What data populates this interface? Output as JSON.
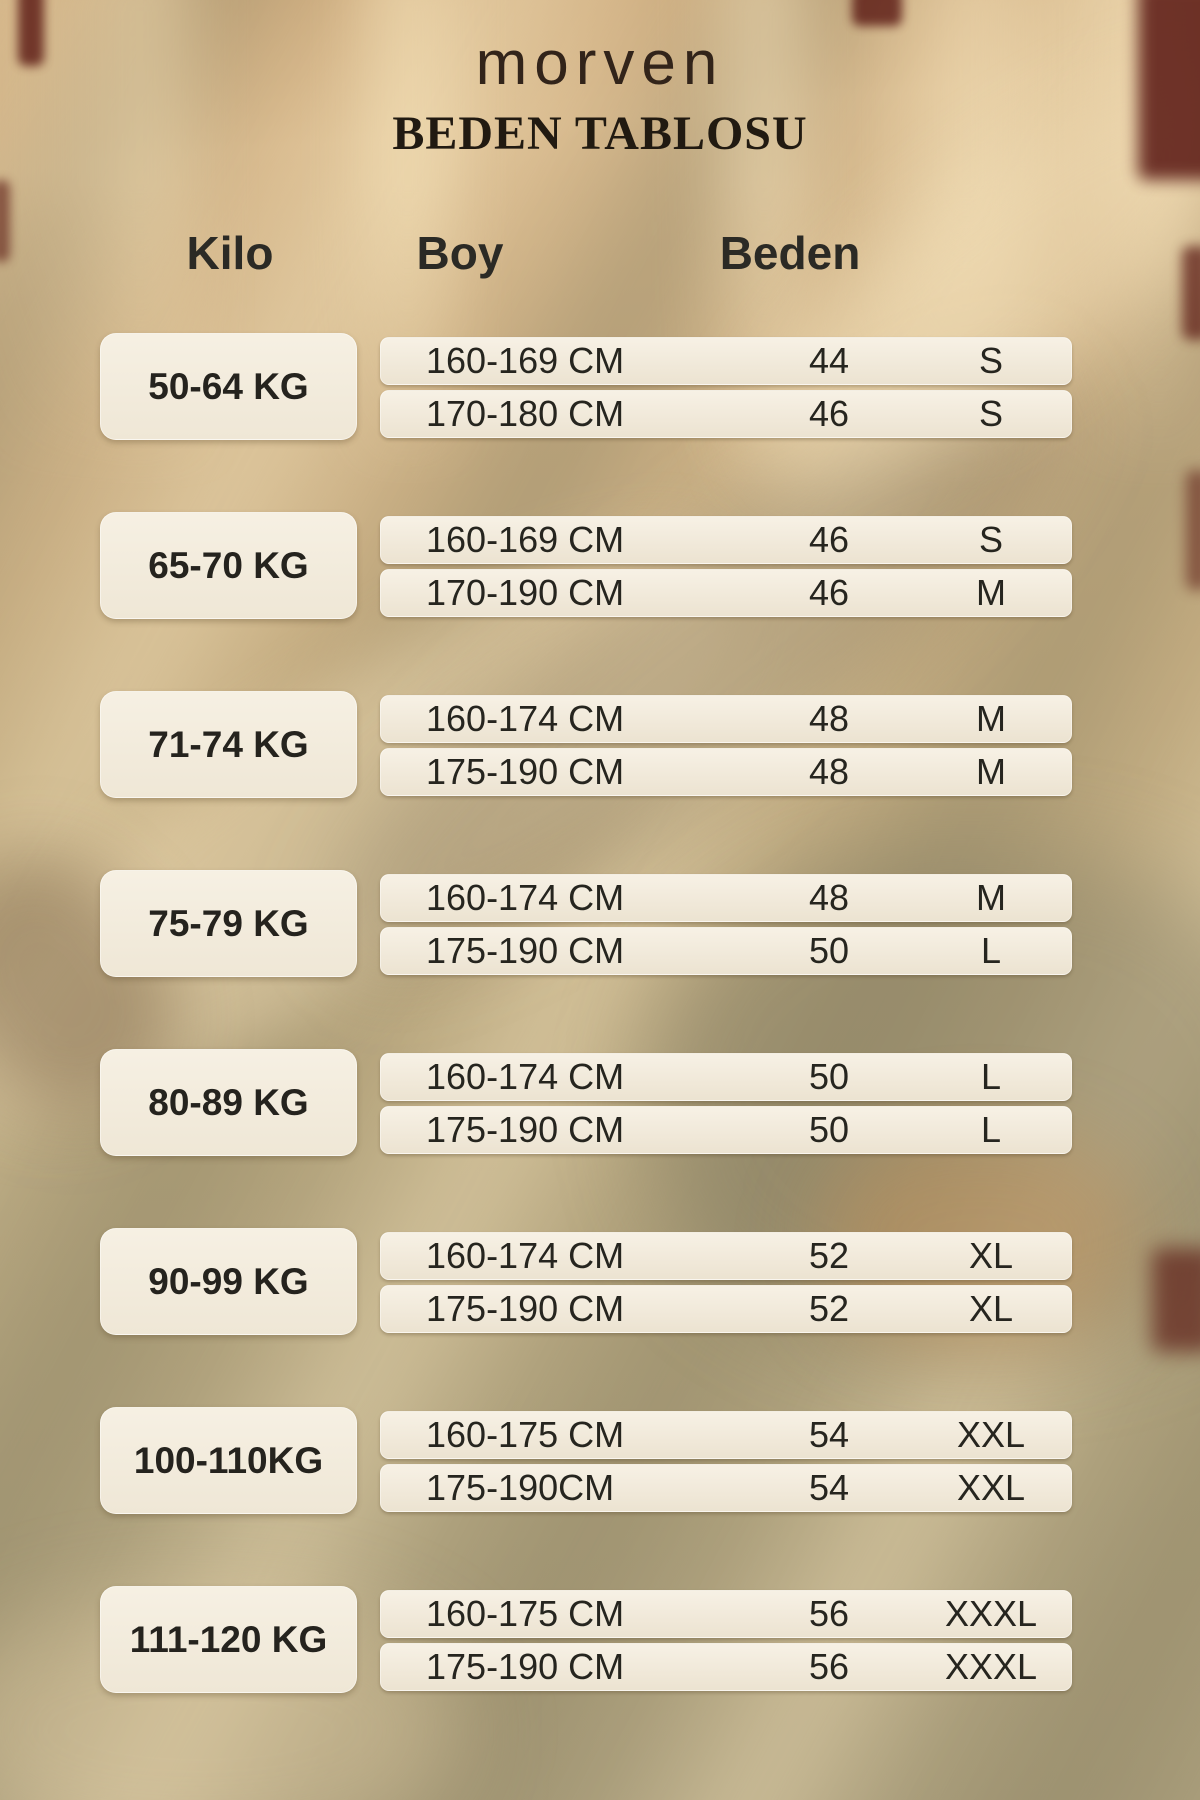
{
  "brand": "morven",
  "title": "BEDEN TABLOSU",
  "columns": {
    "kilo": "Kilo",
    "boy": "Boy",
    "beden": "Beden"
  },
  "groups": [
    {
      "kilo": "50-64 KG",
      "rows": [
        {
          "boy": "160-169 CM",
          "num": "44",
          "size": "S"
        },
        {
          "boy": "170-180 CM",
          "num": "46",
          "size": "S"
        }
      ]
    },
    {
      "kilo": "65-70 KG",
      "rows": [
        {
          "boy": "160-169 CM",
          "num": "46",
          "size": "S"
        },
        {
          "boy": "170-190 CM",
          "num": "46",
          "size": "M"
        }
      ]
    },
    {
      "kilo": "71-74 KG",
      "rows": [
        {
          "boy": "160-174 CM",
          "num": "48",
          "size": "M"
        },
        {
          "boy": "175-190 CM",
          "num": "48",
          "size": "M"
        }
      ]
    },
    {
      "kilo": "75-79 KG",
      "rows": [
        {
          "boy": "160-174 CM",
          "num": "48",
          "size": "M"
        },
        {
          "boy": "175-190 CM",
          "num": "50",
          "size": "L"
        }
      ]
    },
    {
      "kilo": "80-89 KG",
      "rows": [
        {
          "boy": "160-174 CM",
          "num": "50",
          "size": "L"
        },
        {
          "boy": "175-190 CM",
          "num": "50",
          "size": "L"
        }
      ]
    },
    {
      "kilo": "90-99 KG",
      "rows": [
        {
          "boy": "160-174 CM",
          "num": "52",
          "size": "XL"
        },
        {
          "boy": "175-190 CM",
          "num": "52",
          "size": "XL"
        }
      ]
    },
    {
      "kilo": "100-110KG",
      "rows": [
        {
          "boy": "160-175 CM",
          "num": "54",
          "size": "XXL"
        },
        {
          "boy": "175-190CM",
          "num": "54",
          "size": "XXL"
        }
      ]
    },
    {
      "kilo": "111-120 KG",
      "rows": [
        {
          "boy": "160-175 CM",
          "num": "56",
          "size": "XXXL"
        },
        {
          "boy": "175-190 CM",
          "num": "56",
          "size": "XXXL"
        }
      ]
    }
  ],
  "chart_data": {
    "type": "table",
    "title": "BEDEN TABLOSU",
    "columns": [
      "Kilo",
      "Boy",
      "Beden (numeric)",
      "Beden (letter)"
    ],
    "rows": [
      [
        "50-64 KG",
        "160-169 CM",
        "44",
        "S"
      ],
      [
        "50-64 KG",
        "170-180 CM",
        "46",
        "S"
      ],
      [
        "65-70 KG",
        "160-169 CM",
        "46",
        "S"
      ],
      [
        "65-70 KG",
        "170-190 CM",
        "46",
        "M"
      ],
      [
        "71-74 KG",
        "160-174 CM",
        "48",
        "M"
      ],
      [
        "71-74 KG",
        "175-190 CM",
        "48",
        "M"
      ],
      [
        "75-79 KG",
        "160-174 CM",
        "48",
        "M"
      ],
      [
        "75-79 KG",
        "175-190 CM",
        "50",
        "L"
      ],
      [
        "80-89 KG",
        "160-174 CM",
        "50",
        "L"
      ],
      [
        "80-89 KG",
        "175-190 CM",
        "50",
        "L"
      ],
      [
        "90-99 KG",
        "160-174 CM",
        "52",
        "XL"
      ],
      [
        "90-99 KG",
        "175-190 CM",
        "52",
        "XL"
      ],
      [
        "100-110KG",
        "160-175 CM",
        "54",
        "XXL"
      ],
      [
        "100-110KG",
        "175-190CM",
        "54",
        "XXL"
      ],
      [
        "111-120 KG",
        "160-175 CM",
        "56",
        "XXXL"
      ],
      [
        "111-120 KG",
        "175-190 CM",
        "56",
        "XXXL"
      ]
    ]
  },
  "colors": {
    "background_tan": "#c3ab80",
    "cell_cream": "#f3ecdf",
    "text_dark": "#26251f",
    "maroon_accent": "#591712"
  }
}
